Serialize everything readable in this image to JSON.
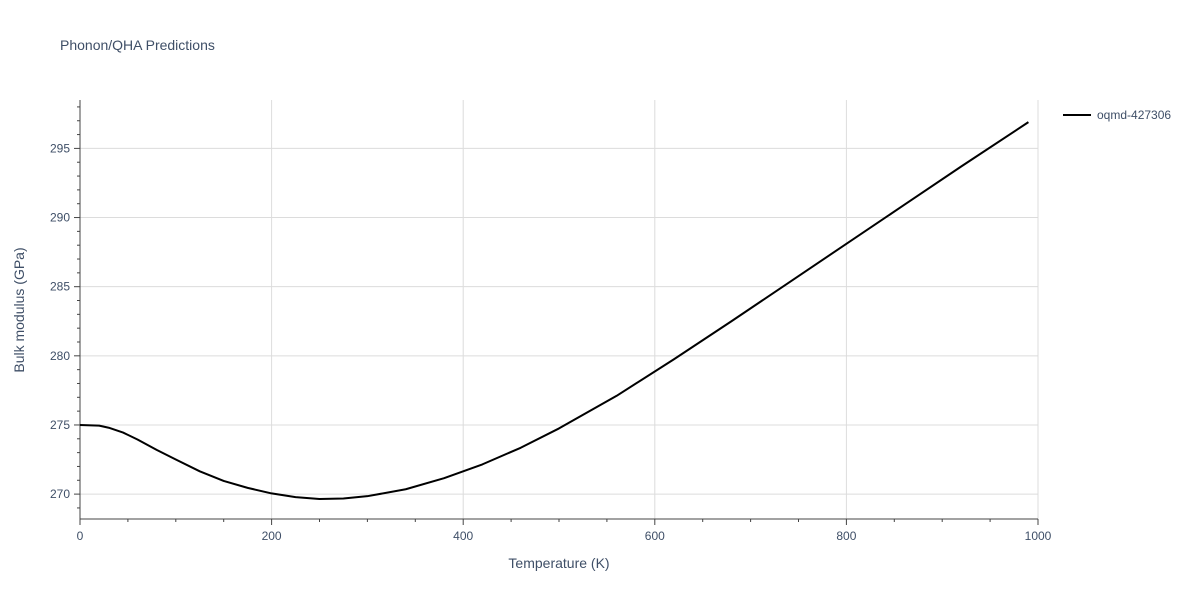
{
  "chart_data": {
    "type": "line",
    "title": "Phonon/QHA Predictions",
    "xlabel": "Temperature (K)",
    "ylabel": "Bulk modulus (GPa)",
    "xlim": [
      0,
      1000
    ],
    "ylim": [
      268.2,
      298.5
    ],
    "x_ticks": [
      0,
      200,
      400,
      600,
      800,
      1000
    ],
    "y_ticks": [
      270,
      275,
      280,
      285,
      290,
      295
    ],
    "grid": true,
    "legend_position": "top-right",
    "series": [
      {
        "name": "oqmd-427306",
        "color": "#000000",
        "x": [
          0,
          20,
          30,
          45,
          60,
          80,
          100,
          125,
          150,
          175,
          200,
          225,
          250,
          275,
          300,
          340,
          380,
          420,
          460,
          500,
          560,
          620,
          680,
          740,
          800,
          860,
          920,
          990
        ],
        "y": [
          275.0,
          274.95,
          274.8,
          274.45,
          273.95,
          273.2,
          272.5,
          271.65,
          270.95,
          270.45,
          270.05,
          269.78,
          269.65,
          269.68,
          269.85,
          270.35,
          271.15,
          272.15,
          273.35,
          274.75,
          277.1,
          279.75,
          282.5,
          285.3,
          288.1,
          290.9,
          293.7,
          296.9
        ]
      }
    ]
  }
}
